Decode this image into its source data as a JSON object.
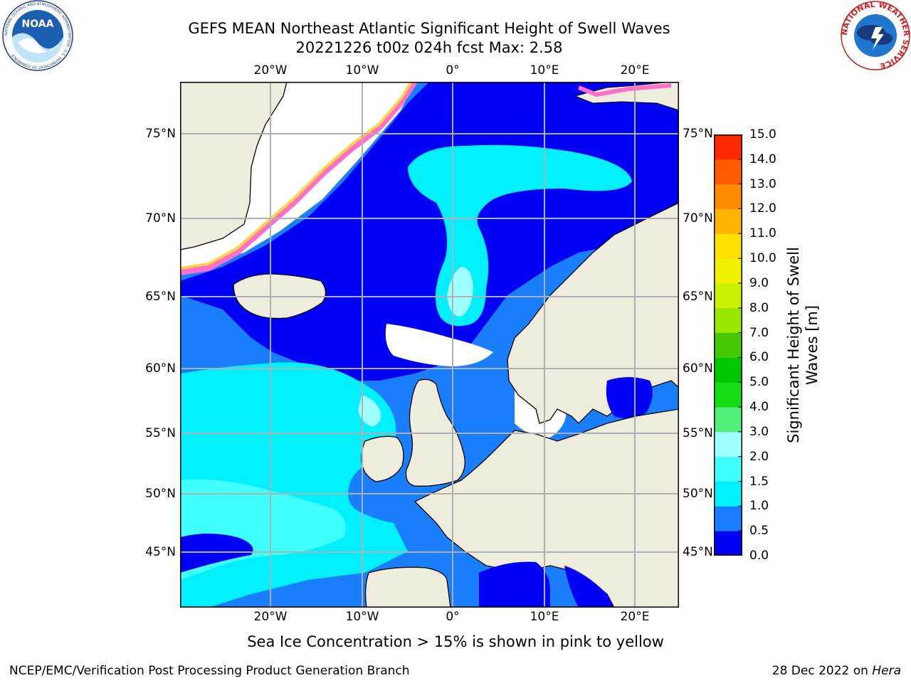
{
  "header": {
    "title_line1": "GEFS MEAN Northeast Atlantic Significant Height of Swell Waves",
    "title_line2": "20221226 t00z 024h fcst   Max: 2.58"
  },
  "logos": {
    "noaa": {
      "text": "NOAA",
      "ring": "NATIONAL OCEANIC AND ATMOSPHERIC ADMINISTRATION · U.S. DEPARTMENT OF COMMERCE"
    },
    "nws": {
      "ring": "NATIONAL WEATHER SERVICE"
    }
  },
  "map": {
    "lon_labels": [
      "20°W",
      "10°W",
      "0°",
      "10°E",
      "20°E"
    ],
    "lat_labels": [
      "75°N",
      "70°N",
      "65°N",
      "60°N",
      "55°N",
      "50°N",
      "45°N"
    ],
    "colors": {
      "land": "#eeecdc",
      "no_data": "#ffffff",
      "grid": "#b0b0b0"
    }
  },
  "colorbar": {
    "title": "Significant Height of Swell Waves [m]",
    "ticks": [
      "0.0",
      "0.5",
      "1.0",
      "1.5",
      "2.0",
      "3.0",
      "4.0",
      "5.0",
      "6.0",
      "7.0",
      "8.0",
      "9.0",
      "10.0",
      "11.0",
      "12.0",
      "13.0",
      "14.0",
      "15.0"
    ],
    "colors": [
      "#0000f5",
      "#1a7fff",
      "#00f0ff",
      "#40ffff",
      "#a0ffff",
      "#50f07a",
      "#14dc14",
      "#00c800",
      "#46c800",
      "#96e600",
      "#c8f000",
      "#f0f000",
      "#ffe000",
      "#ffb400",
      "#ff8c00",
      "#ff5a00",
      "#ff2800"
    ]
  },
  "sea_ice_note": "Sea Ice Concentration > 15% is shown in pink to yellow",
  "footer": {
    "left": "NCEP/EMC/Verification Post Processing Product Generation Branch",
    "right_date": "28 Dec 2022 on ",
    "right_host": "Hera"
  }
}
